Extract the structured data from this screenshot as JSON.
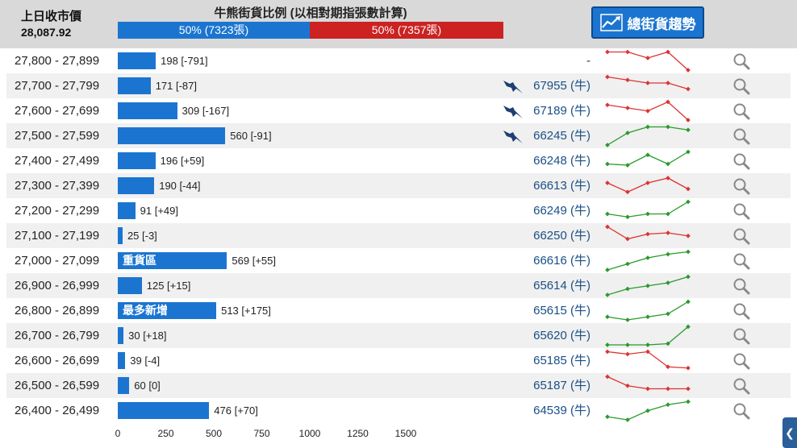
{
  "header": {
    "prev_close_label": "上日收市價",
    "prev_close_value": "28,087.92",
    "ratio_title": "牛熊街貨比例 (以相對期指張數計算)",
    "bull": {
      "label": "50% (7323張)",
      "pct": 50,
      "color": "#1b75d0"
    },
    "bear": {
      "label": "50% (7357張)",
      "pct": 50,
      "color": "#cc2222"
    },
    "trend_button_label": "總街貨趨勢",
    "trend_icon": "line-chart-icon"
  },
  "rows": [
    {
      "range": "27,800 - 27,899",
      "value": 198,
      "count": "198 [-791]",
      "tag": "",
      "code": "-",
      "bat": false,
      "spark": [
        3,
        3,
        2,
        3,
        0
      ],
      "spark_color": "#dd3333"
    },
    {
      "range": "27,700 - 27,799",
      "value": 171,
      "count": "171 [-87]",
      "tag": "",
      "code": "67955 (牛)",
      "bat": true,
      "spark": [
        3,
        2.5,
        2,
        2,
        1
      ],
      "spark_color": "#dd3333"
    },
    {
      "range": "27,600 - 27,699",
      "value": 309,
      "count": "309 [-167]",
      "tag": "",
      "code": "67189 (牛)",
      "bat": true,
      "spark": [
        2.5,
        2,
        1.5,
        3,
        0
      ],
      "spark_color": "#dd3333"
    },
    {
      "range": "27,500 - 27,599",
      "value": 560,
      "count": "560 [-91]",
      "tag": "",
      "code": "66245 (牛)",
      "bat": true,
      "spark": [
        0,
        2,
        3,
        3,
        2.5
      ],
      "spark_color": "#2a9a2a"
    },
    {
      "range": "27,400 - 27,499",
      "value": 196,
      "count": "196 [+59]",
      "tag": "",
      "code": "66248 (牛)",
      "bat": false,
      "spark": [
        1,
        0.8,
        2.5,
        1,
        3
      ],
      "spark_color": "#2a9a2a"
    },
    {
      "range": "27,300 - 27,399",
      "value": 190,
      "count": "190 [-44]",
      "tag": "",
      "code": "66613 (牛)",
      "bat": false,
      "spark": [
        2,
        0.5,
        2,
        2.8,
        1
      ],
      "spark_color": "#dd3333"
    },
    {
      "range": "27,200 - 27,299",
      "value": 91,
      "count": "91 [+49]",
      "tag": "",
      "code": "66249 (牛)",
      "bat": false,
      "spark": [
        1,
        0.5,
        1,
        1,
        3
      ],
      "spark_color": "#2a9a2a"
    },
    {
      "range": "27,100 - 27,199",
      "value": 25,
      "count": "25 [-3]",
      "tag": "",
      "code": "66250 (牛)",
      "bat": false,
      "spark": [
        3,
        1,
        1.8,
        2,
        1.5
      ],
      "spark_color": "#dd3333"
    },
    {
      "range": "27,000 - 27,099",
      "value": 569,
      "count": "569 [+55]",
      "tag": "重貨區",
      "code": "66616 (牛)",
      "bat": false,
      "spark": [
        0,
        1,
        2,
        2.6,
        3
      ],
      "spark_color": "#2a9a2a"
    },
    {
      "range": "26,900 - 26,999",
      "value": 125,
      "count": "125 [+15]",
      "tag": "",
      "code": "65614 (牛)",
      "bat": false,
      "spark": [
        0,
        1,
        1.5,
        2,
        3
      ],
      "spark_color": "#2a9a2a"
    },
    {
      "range": "26,800 - 26,899",
      "value": 513,
      "count": "513 [+175]",
      "tag": "最多新增",
      "code": "65615 (牛)",
      "bat": false,
      "spark": [
        0.5,
        0,
        0.5,
        1,
        3
      ],
      "spark_color": "#2a9a2a"
    },
    {
      "range": "26,700 - 26,799",
      "value": 30,
      "count": "30 [+18]",
      "tag": "",
      "code": "65620 (牛)",
      "bat": false,
      "spark": [
        0,
        0,
        0,
        0.2,
        3
      ],
      "spark_color": "#2a9a2a"
    },
    {
      "range": "26,600 - 26,699",
      "value": 39,
      "count": "39 [-4]",
      "tag": "",
      "code": "65185 (牛)",
      "bat": false,
      "spark": [
        3,
        2.6,
        3,
        0.5,
        0.3
      ],
      "spark_color": "#dd3333"
    },
    {
      "range": "26,500 - 26,599",
      "value": 60,
      "count": "60 [0]",
      "tag": "",
      "code": "65187 (牛)",
      "bat": false,
      "spark": [
        3,
        1.5,
        1,
        1,
        1
      ],
      "spark_color": "#dd3333"
    },
    {
      "range": "26,400 - 26,499",
      "value": 476,
      "count": "476 [+70]",
      "tag": "",
      "code": "64539 (牛)",
      "bat": false,
      "spark": [
        0.5,
        0,
        1.5,
        2.5,
        3
      ],
      "spark_color": "#2a9a2a"
    }
  ],
  "axis": {
    "ticks": [
      "0",
      "250",
      "500",
      "750",
      "1000",
      "1250",
      "1500"
    ],
    "max": 1500
  },
  "icons": {
    "bat": "bat-icon",
    "magnifier": "magnifier-icon",
    "scroll": "chevron-left-icon"
  },
  "scroll_glyph": "❮"
}
